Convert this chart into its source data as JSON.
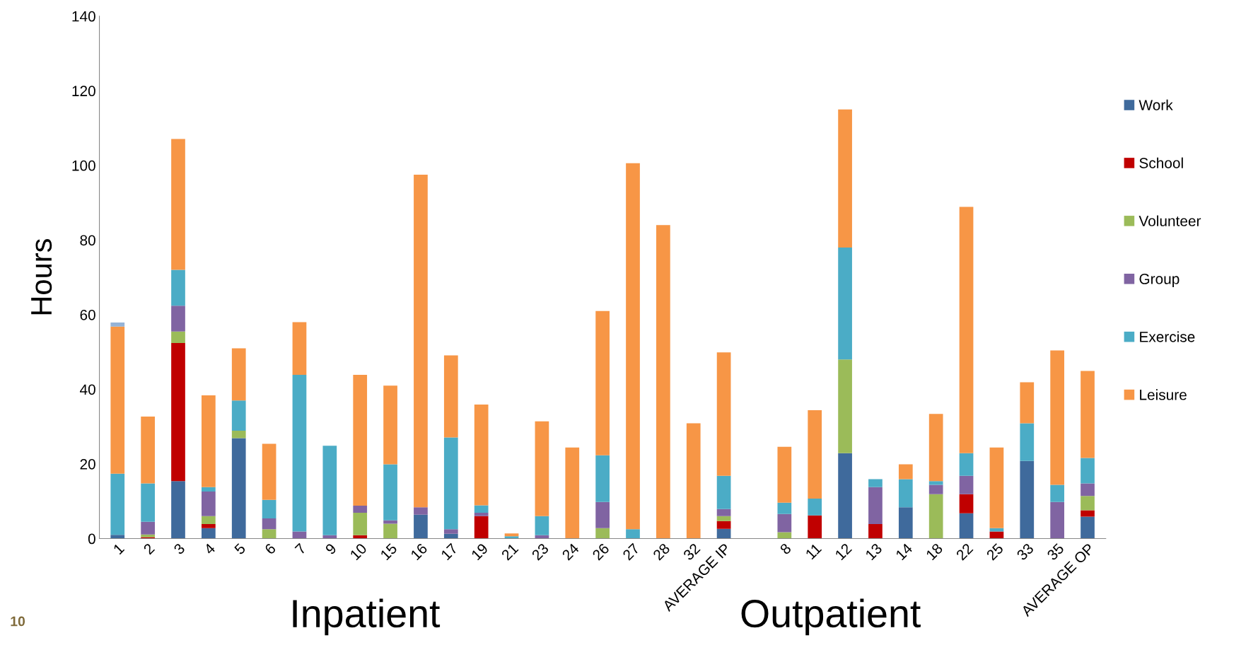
{
  "chart_data": {
    "type": "bar",
    "stacked": true,
    "ylabel": "Hours",
    "categories": [
      "1",
      "2",
      "3",
      "4",
      "5",
      "6",
      "7",
      "9",
      "10",
      "15",
      "16",
      "17",
      "19",
      "21",
      "23",
      "24",
      "26",
      "27",
      "28",
      "32",
      "AVERAGE IP",
      null,
      "8",
      "11",
      "12",
      "13",
      "14",
      "18",
      "22",
      "25",
      "33",
      "35",
      "AVERAGE OP"
    ],
    "series": [
      {
        "name": "Work",
        "color": "#3f6a9c",
        "values": [
          1,
          0,
          15.4,
          2.8,
          26.9,
          0,
          0,
          0,
          0,
          0,
          6.4,
          1.3,
          0,
          0,
          0,
          0,
          0,
          0,
          0,
          0,
          2.6,
          null,
          0,
          0,
          22.9,
          0,
          8.4,
          0,
          6.8,
          0,
          20.8,
          0,
          5.9
        ]
      },
      {
        "name": "School",
        "color": "#c00000",
        "values": [
          0,
          0.4,
          37,
          1.1,
          0,
          0,
          0,
          0,
          0.9,
          0,
          0,
          0,
          6,
          0,
          0,
          0,
          0,
          0,
          0,
          0,
          2.1,
          null,
          0,
          6.2,
          0,
          3.9,
          0,
          0,
          5.1,
          1.9,
          0,
          0,
          1.7
        ]
      },
      {
        "name": "Volunteer",
        "color": "#9bbb59",
        "values": [
          0,
          0.7,
          3.1,
          2.1,
          2,
          2.5,
          0,
          0,
          6,
          4,
          0,
          0,
          0,
          0,
          0,
          0,
          2.8,
          0,
          0,
          0,
          1.3,
          null,
          1.7,
          0,
          25.1,
          0,
          0,
          11.9,
          0,
          0,
          0,
          0,
          3.8
        ]
      },
      {
        "name": "Group",
        "color": "#8064a2",
        "values": [
          0,
          3.4,
          6.9,
          6.6,
          0,
          2.9,
          1.9,
          0.9,
          1.9,
          0.9,
          2,
          1.2,
          0.9,
          0,
          0.9,
          0,
          7,
          0,
          0,
          0,
          1.9,
          null,
          4.9,
          0,
          0,
          9.9,
          0,
          2.5,
          4.9,
          0,
          0,
          9.8,
          3.4
        ]
      },
      {
        "name": "Exercise",
        "color": "#4bacc6",
        "values": [
          16.4,
          10.3,
          9.6,
          1.2,
          8.1,
          5,
          42,
          24,
          0,
          15,
          0,
          24.6,
          2,
          0.6,
          5.1,
          0,
          12.5,
          2.5,
          0,
          0,
          8.9,
          null,
          3,
          4.5,
          30,
          2.1,
          7.5,
          1,
          6.1,
          0.9,
          10.1,
          4.6,
          6.8
        ]
      },
      {
        "name": "Leisure",
        "color": "#f79646",
        "values": [
          39.4,
          17.9,
          35.1,
          24.6,
          14,
          15,
          14.1,
          0,
          35.1,
          21.1,
          89.1,
          22,
          27,
          0.8,
          25.4,
          24.4,
          38.7,
          98.1,
          84,
          30.9,
          33.1,
          null,
          15,
          23.7,
          37,
          0,
          4,
          18,
          66,
          21.6,
          11,
          36,
          23.3
        ]
      },
      {
        "color": "#95b3d7",
        "values": [
          1.1,
          0,
          0,
          0,
          0,
          0,
          0,
          0,
          0,
          0,
          0,
          0,
          0,
          0,
          0,
          0,
          0,
          0,
          0,
          0,
          0,
          null,
          0,
          0,
          0,
          0,
          0,
          0,
          0,
          0,
          0,
          0,
          0
        ]
      }
    ],
    "ylim": [
      0,
      140
    ],
    "yticks": [
      0,
      20,
      40,
      60,
      80,
      100,
      120,
      140
    ],
    "grid": false,
    "legend": "right",
    "annotations": [
      "Inpatient",
      "Outpatient",
      "10"
    ]
  }
}
